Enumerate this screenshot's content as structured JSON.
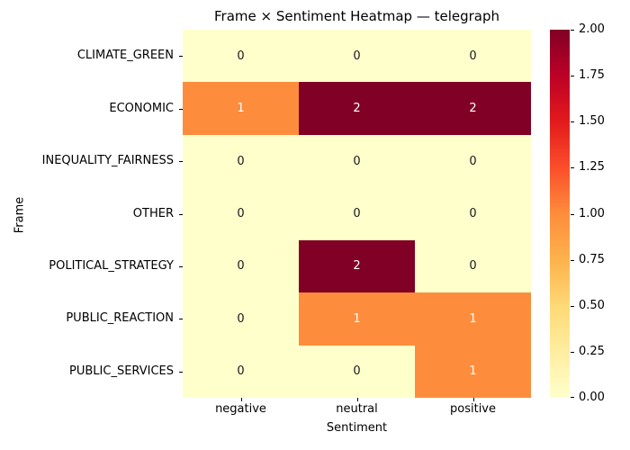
{
  "title": "Frame × Sentiment Heatmap — telegraph",
  "chart_data": {
    "type": "heatmap",
    "title": "Frame × Sentiment Heatmap — telegraph",
    "xlabel": "Sentiment",
    "ylabel": "Frame",
    "columns": [
      "negative",
      "neutral",
      "positive"
    ],
    "rows": [
      "CLIMATE_GREEN",
      "ECONOMIC",
      "INEQUALITY_FAIRNESS",
      "OTHER",
      "POLITICAL_STRATEGY",
      "PUBLIC_REACTION",
      "PUBLIC_SERVICES"
    ],
    "values": [
      [
        0,
        0,
        0
      ],
      [
        1,
        2,
        2
      ],
      [
        0,
        0,
        0
      ],
      [
        0,
        0,
        0
      ],
      [
        0,
        2,
        0
      ],
      [
        0,
        1,
        1
      ],
      [
        0,
        0,
        1
      ]
    ],
    "vmin": 0,
    "vmax": 2,
    "colormap": "YlOrRd",
    "legend_position": "right-colorbar",
    "grid": false,
    "colorbar_ticks": [
      "0.00",
      "0.25",
      "0.50",
      "0.75",
      "1.00",
      "1.25",
      "1.50",
      "1.75",
      "2.00"
    ],
    "value_colors": {
      "0": "#ffffcc",
      "1": "#fd8d3c",
      "2": "#800026"
    },
    "value_text_colors": {
      "0": "#1a1a1a",
      "1": "#ffffff",
      "2": "#ffffff"
    },
    "colorbar_gradient": [
      "#ffffcc",
      "#ffeda0",
      "#fed976",
      "#feb24c",
      "#fd8d3c",
      "#fc4e2a",
      "#e31a1c",
      "#bd0026",
      "#800026"
    ]
  }
}
